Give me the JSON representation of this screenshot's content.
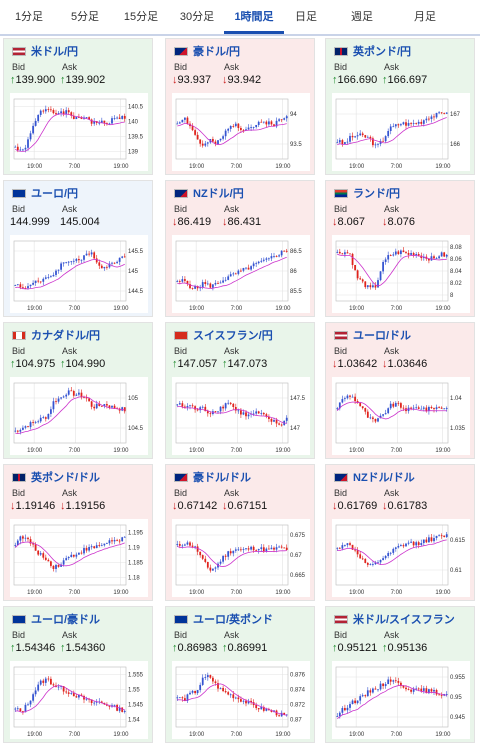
{
  "tabs": [
    {
      "label": "1分足",
      "active": false
    },
    {
      "label": "5分足",
      "active": false
    },
    {
      "label": "15分足",
      "active": false
    },
    {
      "label": "30分足",
      "active": false
    },
    {
      "label": "1時間足",
      "active": true
    },
    {
      "label": "日足",
      "active": false
    },
    {
      "label": "週足",
      "active": false
    },
    {
      "label": "月足",
      "active": false
    }
  ],
  "labels": {
    "bid": "Bid",
    "ask": "Ask"
  },
  "colors": {
    "up_candle": "#3554d1",
    "down_candle": "#e0231c",
    "ma": "#cc33cc",
    "up_arrow": "#1f8c2e",
    "down_arrow": "#cc2222"
  },
  "cards": [
    {
      "name": "米ドル/円",
      "flag": "us",
      "trend": "up",
      "bid_dir": "up",
      "ask_dir": "up",
      "bid": "139.900",
      "ask": "139.902",
      "chart": {
        "y_ticks": [
          "140.5",
          "140",
          "139.5",
          "139"
        ],
        "x_ticks": [
          "19:00",
          "7:00",
          "19:00"
        ],
        "seed": 1,
        "shape": [
          0.2,
          0.1,
          0.3,
          0.6,
          0.8,
          0.85,
          0.8,
          0.75,
          0.78,
          0.7,
          0.65,
          0.72,
          0.6,
          0.62,
          0.58,
          0.65,
          0.68,
          0.7
        ]
      }
    },
    {
      "name": "豪ドル/円",
      "flag": "au",
      "trend": "down",
      "bid_dir": "down",
      "ask_dir": "down",
      "bid": "93.937",
      "ask": "93.942",
      "chart": {
        "y_ticks": [
          "94",
          "93.5"
        ],
        "x_ticks": [
          "19:00",
          "7:00",
          "19:00"
        ],
        "seed": 2,
        "shape": [
          0.6,
          0.7,
          0.55,
          0.35,
          0.2,
          0.3,
          0.25,
          0.35,
          0.55,
          0.6,
          0.5,
          0.52,
          0.55,
          0.6,
          0.62,
          0.58,
          0.65,
          0.7
        ]
      }
    },
    {
      "name": "英ポンド/円",
      "flag": "uk",
      "trend": "up",
      "bid_dir": "up",
      "ask_dir": "up",
      "bid": "166.690",
      "ask": "166.697",
      "chart": {
        "y_ticks": [
          "167",
          "166"
        ],
        "x_ticks": [
          "19:00",
          "7:00",
          "19:00"
        ],
        "seed": 3,
        "shape": [
          0.3,
          0.25,
          0.35,
          0.4,
          0.38,
          0.35,
          0.2,
          0.3,
          0.5,
          0.55,
          0.6,
          0.58,
          0.6,
          0.62,
          0.7,
          0.72,
          0.75,
          0.8
        ]
      }
    },
    {
      "name": "ユーロ/円",
      "flag": "eu",
      "trend": "neutral",
      "bid_dir": "none",
      "ask_dir": "none",
      "bid": "144.999",
      "ask": "145.004",
      "chart": {
        "y_ticks": [
          "145.5",
          "145",
          "144.5"
        ],
        "x_ticks": [
          "19:00",
          "7:00",
          "19:00"
        ],
        "seed": 4,
        "shape": [
          0.3,
          0.2,
          0.25,
          0.35,
          0.3,
          0.4,
          0.45,
          0.6,
          0.65,
          0.7,
          0.68,
          0.75,
          0.8,
          0.6,
          0.55,
          0.65,
          0.7,
          0.72
        ]
      }
    },
    {
      "name": "NZドル/円",
      "flag": "nz",
      "trend": "down",
      "bid_dir": "down",
      "ask_dir": "down",
      "bid": "86.419",
      "ask": "86.431",
      "chart": {
        "y_ticks": [
          "86.5",
          "86",
          "85.5"
        ],
        "x_ticks": [
          "19:00",
          "7:00",
          "19:00"
        ],
        "seed": 5,
        "shape": [
          0.3,
          0.35,
          0.25,
          0.2,
          0.3,
          0.25,
          0.28,
          0.35,
          0.4,
          0.45,
          0.5,
          0.55,
          0.6,
          0.65,
          0.68,
          0.75,
          0.8,
          0.85
        ]
      }
    },
    {
      "name": "ランド/円",
      "flag": "za",
      "trend": "down",
      "bid_dir": "down",
      "ask_dir": "down",
      "bid": "8.067",
      "ask": "8.076",
      "chart": {
        "y_ticks": [
          "8.08",
          "8.06",
          "8.04",
          "8.02",
          "8"
        ],
        "x_ticks": [
          "19:00",
          "7:00",
          "19:00"
        ],
        "seed": 6,
        "shape": [
          0.8,
          0.82,
          0.78,
          0.4,
          0.3,
          0.2,
          0.25,
          0.6,
          0.75,
          0.8,
          0.82,
          0.78,
          0.8,
          0.75,
          0.72,
          0.7,
          0.78,
          0.75
        ]
      }
    },
    {
      "name": "カナダドル/円",
      "flag": "ca",
      "trend": "up",
      "bid_dir": "up",
      "ask_dir": "up",
      "bid": "104.975",
      "ask": "104.990",
      "chart": {
        "y_ticks": [
          "105",
          "104.5"
        ],
        "x_ticks": [
          "19:00",
          "7:00",
          "19:00"
        ],
        "seed": 7,
        "shape": [
          0.2,
          0.25,
          0.3,
          0.35,
          0.4,
          0.45,
          0.7,
          0.75,
          0.85,
          0.82,
          0.8,
          0.75,
          0.6,
          0.62,
          0.65,
          0.6,
          0.58,
          0.55
        ]
      }
    },
    {
      "name": "スイスフラン/円",
      "flag": "ch",
      "trend": "up",
      "bid_dir": "up",
      "ask_dir": "up",
      "bid": "147.057",
      "ask": "147.073",
      "chart": {
        "y_ticks": [
          "147.5",
          "147"
        ],
        "x_ticks": [
          "19:00",
          "7:00",
          "19:00"
        ],
        "seed": 8,
        "shape": [
          0.65,
          0.6,
          0.62,
          0.55,
          0.58,
          0.5,
          0.55,
          0.6,
          0.7,
          0.55,
          0.5,
          0.45,
          0.5,
          0.48,
          0.4,
          0.35,
          0.3,
          0.4
        ]
      }
    },
    {
      "name": "ユーロ/ドル",
      "flag": "us",
      "trend": "down",
      "bid_dir": "down",
      "ask_dir": "down",
      "bid": "1.03642",
      "ask": "1.03646",
      "chart": {
        "y_ticks": [
          "1.04",
          "1.035"
        ],
        "x_ticks": [
          "19:00",
          "7:00",
          "19:00"
        ],
        "seed": 9,
        "shape": [
          0.6,
          0.75,
          0.8,
          0.7,
          0.55,
          0.4,
          0.35,
          0.45,
          0.6,
          0.65,
          0.6,
          0.55,
          0.58,
          0.6,
          0.55,
          0.6,
          0.58,
          0.6
        ]
      }
    },
    {
      "name": "英ポンド/ドル",
      "flag": "uk",
      "trend": "down",
      "bid_dir": "down",
      "ask_dir": "down",
      "bid": "1.19146",
      "ask": "1.19156",
      "chart": {
        "y_ticks": [
          "1.195",
          "1.19",
          "1.185",
          "1.18"
        ],
        "x_ticks": [
          "19:00",
          "7:00",
          "19:00"
        ],
        "seed": 10,
        "shape": [
          0.7,
          0.8,
          0.75,
          0.6,
          0.5,
          0.4,
          0.3,
          0.35,
          0.45,
          0.5,
          0.55,
          0.6,
          0.62,
          0.65,
          0.7,
          0.75,
          0.72,
          0.78
        ]
      }
    },
    {
      "name": "豪ドル/ドル",
      "flag": "au",
      "trend": "down",
      "bid_dir": "down",
      "ask_dir": "down",
      "bid": "0.67142",
      "ask": "0.67151",
      "chart": {
        "y_ticks": [
          "0.675",
          "0.67",
          "0.665"
        ],
        "x_ticks": [
          "19:00",
          "7:00",
          "19:00"
        ],
        "seed": 11,
        "shape": [
          0.65,
          0.7,
          0.68,
          0.6,
          0.4,
          0.25,
          0.3,
          0.45,
          0.55,
          0.6,
          0.58,
          0.6,
          0.62,
          0.6,
          0.58,
          0.6,
          0.62,
          0.6
        ]
      }
    },
    {
      "name": "NZドル/ドル",
      "flag": "nz",
      "trend": "down",
      "bid_dir": "down",
      "ask_dir": "down",
      "bid": "0.61769",
      "ask": "0.61783",
      "chart": {
        "y_ticks": [
          "0.615",
          "0.61"
        ],
        "x_ticks": [
          "19:00",
          "7:00",
          "19:00"
        ],
        "seed": 12,
        "shape": [
          0.6,
          0.7,
          0.65,
          0.55,
          0.4,
          0.3,
          0.35,
          0.45,
          0.5,
          0.6,
          0.65,
          0.7,
          0.68,
          0.72,
          0.75,
          0.78,
          0.8,
          0.82
        ]
      }
    },
    {
      "name": "ユーロ/豪ドル",
      "flag": "eu",
      "trend": "up",
      "bid_dir": "up",
      "ask_dir": "up",
      "bid": "1.54346",
      "ask": "1.54360",
      "chart": {
        "y_ticks": [
          "1.555",
          "1.55",
          "1.545",
          "1.54"
        ],
        "x_ticks": [
          "19:00",
          "7:00",
          "19:00"
        ],
        "seed": 13,
        "shape": [
          0.3,
          0.25,
          0.4,
          0.6,
          0.75,
          0.8,
          0.7,
          0.65,
          0.6,
          0.55,
          0.5,
          0.45,
          0.4,
          0.42,
          0.38,
          0.35,
          0.3,
          0.28
        ]
      }
    },
    {
      "name": "ユーロ/英ポンド",
      "flag": "eu",
      "trend": "up",
      "bid_dir": "up",
      "ask_dir": "up",
      "bid": "0.86983",
      "ask": "0.86991",
      "chart": {
        "y_ticks": [
          "0.876",
          "0.874",
          "0.872",
          "0.87"
        ],
        "x_ticks": [
          "19:00",
          "7:00",
          "19:00"
        ],
        "seed": 14,
        "shape": [
          0.5,
          0.45,
          0.55,
          0.6,
          0.8,
          0.85,
          0.7,
          0.6,
          0.55,
          0.5,
          0.45,
          0.4,
          0.35,
          0.3,
          0.28,
          0.25,
          0.2,
          0.18
        ]
      }
    },
    {
      "name": "米ドル/スイスフラン",
      "flag": "us",
      "trend": "up",
      "bid_dir": "up",
      "ask_dir": "up",
      "bid": "0.95121",
      "ask": "0.95136",
      "chart": {
        "y_ticks": [
          "0.955",
          "0.95",
          "0.945"
        ],
        "x_ticks": [
          "19:00",
          "7:00",
          "19:00"
        ],
        "seed": 15,
        "shape": [
          0.2,
          0.3,
          0.4,
          0.45,
          0.5,
          0.6,
          0.65,
          0.7,
          0.8,
          0.75,
          0.7,
          0.65,
          0.6,
          0.62,
          0.6,
          0.58,
          0.55,
          0.56
        ]
      }
    }
  ]
}
